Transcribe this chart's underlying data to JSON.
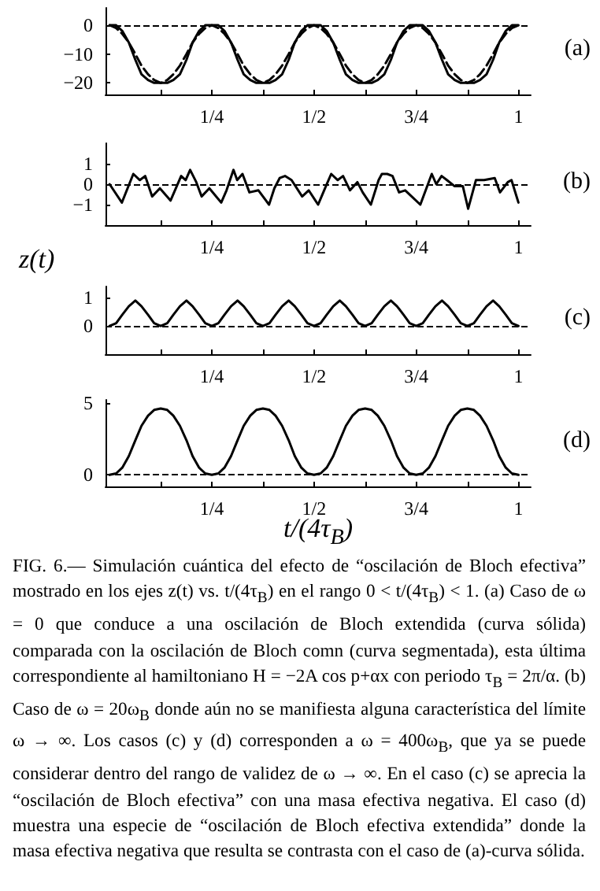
{
  "chart_data": [
    {
      "type": "line",
      "marker": "none",
      "annotations": [
        "(a)"
      ],
      "x": [
        0,
        0.016,
        0.031,
        0.047,
        0.063,
        0.078,
        0.094,
        0.109,
        0.125,
        0.141,
        0.156,
        0.172,
        0.188,
        0.203,
        0.219,
        0.234,
        0.25,
        0.266,
        0.281,
        0.297,
        0.313,
        0.328,
        0.344,
        0.359,
        0.375,
        0.391,
        0.406,
        0.422,
        0.438,
        0.453,
        0.469,
        0.484,
        0.5,
        0.516,
        0.531,
        0.547,
        0.563,
        0.578,
        0.594,
        0.609,
        0.625,
        0.641,
        0.656,
        0.672,
        0.688,
        0.703,
        0.719,
        0.734,
        0.75,
        0.766,
        0.781,
        0.797,
        0.813,
        0.828,
        0.844,
        0.859,
        0.875,
        0.891,
        0.906,
        0.922,
        0.938,
        0.953,
        0.969,
        0.984,
        1
      ],
      "series": [
        {
          "color": "#000000",
          "line_style": "solid",
          "values": [
            0,
            0,
            -2,
            -6,
            -12,
            -17,
            -19,
            -20,
            -20,
            -20,
            -19,
            -17,
            -12,
            -6,
            -2,
            0,
            0,
            0,
            -2,
            -6,
            -12,
            -17,
            -19,
            -20,
            -20,
            -20,
            -19,
            -17,
            -12,
            -6,
            -2,
            0,
            0,
            0,
            -2,
            -6,
            -12,
            -17,
            -19,
            -20,
            -20,
            -20,
            -19,
            -17,
            -12,
            -6,
            -2,
            0,
            0,
            0,
            -2,
            -6,
            -12,
            -17,
            -19,
            -20,
            -20,
            -20,
            -19,
            -17,
            -12,
            -6,
            -2,
            0,
            0
          ]
        },
        {
          "color": "#000000",
          "line_style": "dashed",
          "values": [
            0,
            -1,
            -3,
            -6,
            -10,
            -14,
            -17,
            -19,
            -20,
            -19,
            -17,
            -14,
            -10,
            -6,
            -3,
            -1,
            0,
            -1,
            -3,
            -6,
            -10,
            -14,
            -17,
            -19,
            -20,
            -19,
            -17,
            -14,
            -10,
            -6,
            -3,
            -1,
            0,
            -1,
            -3,
            -6,
            -10,
            -14,
            -17,
            -19,
            -20,
            -19,
            -17,
            -14,
            -10,
            -6,
            -3,
            -1,
            0,
            -1,
            -3,
            -6,
            -10,
            -14,
            -17,
            -19,
            -20,
            -19,
            -17,
            -14,
            -10,
            -6,
            -3,
            -1,
            0
          ]
        }
      ],
      "xlim": [
        -0.01,
        1.03
      ],
      "xticks": [
        {
          "value": 0.125,
          "label": null
        },
        {
          "value": 0.25,
          "label": "1/4"
        },
        {
          "value": 0.375,
          "label": null
        },
        {
          "value": 0.5,
          "label": "1/2"
        },
        {
          "value": 0.625,
          "label": null
        },
        {
          "value": 0.75,
          "label": "3/4"
        },
        {
          "value": 0.875,
          "label": null
        },
        {
          "value": 1,
          "label": "1"
        }
      ],
      "ylim": [
        -24,
        6
      ],
      "yticks": [
        -20,
        -10,
        0
      ],
      "ref_lines": [
        {
          "axis": "y",
          "value": 0,
          "line_style": "dashed"
        }
      ]
    },
    {
      "type": "line",
      "marker": "none",
      "annotations": [
        "(b)"
      ],
      "ylabel": "z(t)",
      "x": [
        0,
        0.03,
        0.058,
        0.074,
        0.087,
        0.104,
        0.123,
        0.149,
        0.175,
        0.186,
        0.197,
        0.212,
        0.225,
        0.244,
        0.273,
        0.286,
        0.303,
        0.312,
        0.325,
        0.342,
        0.364,
        0.39,
        0.403,
        0.416,
        0.429,
        0.445,
        0.471,
        0.487,
        0.51,
        0.529,
        0.542,
        0.558,
        0.571,
        0.588,
        0.606,
        0.619,
        0.639,
        0.658,
        0.666,
        0.679,
        0.692,
        0.708,
        0.723,
        0.76,
        0.788,
        0.799,
        0.812,
        0.825,
        0.844,
        0.864,
        0.877,
        0.896,
        0.916,
        0.942,
        0.955,
        0.974,
        0.983,
        1.0
      ],
      "series": [
        {
          "color": "#000000",
          "values": [
            0,
            -0.9,
            0.5,
            0.2,
            0.4,
            -0.6,
            -0.2,
            -0.8,
            0.4,
            0.2,
            0.7,
            0.1,
            -0.6,
            -0.2,
            -0.9,
            -0.3,
            0.7,
            0.2,
            0.5,
            -0.4,
            -0.3,
            -1.0,
            -0.2,
            0.3,
            0.4,
            0.2,
            -0.6,
            -0.3,
            -1.0,
            -0.1,
            0.5,
            0.2,
            0.4,
            -0.3,
            0.1,
            -0.4,
            -1.0,
            0.2,
            0.5,
            0.5,
            0.4,
            -0.4,
            -0.3,
            -1.0,
            0.5,
            0,
            0.4,
            0.2,
            -0.1,
            -0.1,
            -1.2,
            0.2,
            0.2,
            0.3,
            -0.4,
            0.1,
            0.2,
            -0.9
          ]
        }
      ],
      "xlim": [
        -0.01,
        1.03
      ],
      "xticks": [
        {
          "value": 0.125,
          "label": null
        },
        {
          "value": 0.25,
          "label": "1/4"
        },
        {
          "value": 0.375,
          "label": null
        },
        {
          "value": 0.5,
          "label": "1/2"
        },
        {
          "value": 0.625,
          "label": null
        },
        {
          "value": 0.75,
          "label": "3/4"
        },
        {
          "value": 0.875,
          "label": null
        },
        {
          "value": 1,
          "label": "1"
        }
      ],
      "ylim": [
        -2,
        2
      ],
      "yticks": [
        -1,
        0,
        1
      ],
      "ref_lines": [
        {
          "axis": "y",
          "value": 0,
          "line_style": "dashed"
        }
      ]
    },
    {
      "type": "line",
      "marker": "none",
      "annotations": [
        "(c)"
      ],
      "x": [
        0,
        0.016,
        0.031,
        0.047,
        0.063,
        0.078,
        0.094,
        0.109,
        0.125,
        0.141,
        0.156,
        0.172,
        0.188,
        0.203,
        0.219,
        0.234,
        0.25,
        0.266,
        0.281,
        0.297,
        0.313,
        0.328,
        0.344,
        0.359,
        0.375,
        0.391,
        0.406,
        0.422,
        0.438,
        0.453,
        0.469,
        0.484,
        0.5,
        0.516,
        0.531,
        0.547,
        0.563,
        0.578,
        0.594,
        0.609,
        0.625,
        0.641,
        0.656,
        0.672,
        0.688,
        0.703,
        0.719,
        0.734,
        0.75,
        0.766,
        0.781,
        0.797,
        0.813,
        0.828,
        0.844,
        0.859,
        0.875,
        0.891,
        0.906,
        0.922,
        0.938,
        0.953,
        0.969,
        0.984,
        1
      ],
      "series": [
        {
          "color": "#000000",
          "values": [
            0,
            0.1,
            0.4,
            0.7,
            0.9,
            0.7,
            0.4,
            0.1,
            0,
            0.1,
            0.4,
            0.7,
            0.9,
            0.7,
            0.4,
            0.1,
            0,
            0.1,
            0.4,
            0.7,
            0.9,
            0.7,
            0.4,
            0.1,
            0,
            0.1,
            0.4,
            0.7,
            0.9,
            0.7,
            0.4,
            0.1,
            0,
            0.1,
            0.4,
            0.7,
            0.9,
            0.7,
            0.4,
            0.1,
            0,
            0.1,
            0.4,
            0.7,
            0.9,
            0.7,
            0.4,
            0.1,
            0,
            0.1,
            0.4,
            0.7,
            0.9,
            0.7,
            0.4,
            0.1,
            0,
            0.1,
            0.4,
            0.7,
            0.9,
            0.7,
            0.4,
            0.1,
            0
          ]
        }
      ],
      "xlim": [
        -0.01,
        1.03
      ],
      "xticks": [
        {
          "value": 0.125,
          "label": null
        },
        {
          "value": 0.25,
          "label": "1/4"
        },
        {
          "value": 0.375,
          "label": null
        },
        {
          "value": 0.5,
          "label": "1/2"
        },
        {
          "value": 0.625,
          "label": null
        },
        {
          "value": 0.75,
          "label": "3/4"
        },
        {
          "value": 0.875,
          "label": null
        },
        {
          "value": 1,
          "label": "1"
        }
      ],
      "ylim": [
        -1,
        1.4
      ],
      "yticks": [
        0,
        1
      ],
      "ref_lines": [
        {
          "axis": "y",
          "value": 0,
          "line_style": "dashed"
        }
      ]
    },
    {
      "type": "line",
      "marker": "none",
      "xlabel": "t/(4τ$_{B}$)",
      "annotations": [
        "(d)",
        "FIG. 6.— Simulación cuántica del efecto de “oscilación de Bloch efectiva” mostrado en los ejes z(t) vs. t/(4τ$_{B}$) en el rango 0 < t/(4τ$_{B}$) < 1. (a) Caso de ω = 0 que conduce a una oscilación de Bloch extendida (curva sólida) comparada con la oscilación de Bloch comn (curva segmentada), esta última correspondiente al hamiltoniano H = −2A cos p+αx con periodo τ$_{B}$ = 2π/α. (b) Caso de ω = 20ω$_{B}$ donde aún no se manifiesta alguna característica del límite ω → ∞. Los casos (c) y (d) corresponden a ω = 400ω$_{B}$, que ya se puede considerar dentro del rango de validez de ω → ∞. En el caso (c) se aprecia la “oscilación de Bloch efectiva” con una masa efectiva negativa. El caso (d) muestra una especie de “oscilación de Bloch efectiva extendida” donde la masa efectiva negativa que resulta se contrasta con el caso de (a)-curva sólida."
      ],
      "x": [
        0,
        0.016,
        0.031,
        0.047,
        0.063,
        0.078,
        0.094,
        0.109,
        0.125,
        0.141,
        0.156,
        0.172,
        0.188,
        0.203,
        0.219,
        0.234,
        0.25,
        0.266,
        0.281,
        0.297,
        0.313,
        0.328,
        0.344,
        0.359,
        0.375,
        0.391,
        0.406,
        0.422,
        0.438,
        0.453,
        0.469,
        0.484,
        0.5,
        0.516,
        0.531,
        0.547,
        0.563,
        0.578,
        0.594,
        0.609,
        0.625,
        0.641,
        0.656,
        0.672,
        0.688,
        0.703,
        0.719,
        0.734,
        0.75,
        0.766,
        0.781,
        0.797,
        0.813,
        0.828,
        0.844,
        0.859,
        0.875,
        0.891,
        0.906,
        0.922,
        0.938,
        0.953,
        0.969,
        0.984,
        1
      ],
      "series": [
        {
          "color": "#000000",
          "values": [
            0,
            0.1,
            0.5,
            1.3,
            2.4,
            3.4,
            4.1,
            4.5,
            4.6,
            4.5,
            4.1,
            3.4,
            2.4,
            1.3,
            0.5,
            0.1,
            0,
            0.1,
            0.5,
            1.3,
            2.4,
            3.4,
            4.1,
            4.5,
            4.6,
            4.5,
            4.1,
            3.4,
            2.4,
            1.3,
            0.5,
            0.1,
            0,
            0.1,
            0.5,
            1.3,
            2.4,
            3.4,
            4.1,
            4.5,
            4.6,
            4.5,
            4.1,
            3.4,
            2.4,
            1.3,
            0.5,
            0.1,
            0,
            0.1,
            0.5,
            1.3,
            2.4,
            3.4,
            4.1,
            4.5,
            4.6,
            4.5,
            4.1,
            3.4,
            2.4,
            1.3,
            0.5,
            0.1,
            0
          ]
        }
      ],
      "xlim": [
        -0.01,
        1.03
      ],
      "xticks": [
        {
          "value": 0.125,
          "label": null
        },
        {
          "value": 0.25,
          "label": "1/4"
        },
        {
          "value": 0.375,
          "label": null
        },
        {
          "value": 0.5,
          "label": "1/2"
        },
        {
          "value": 0.625,
          "label": null
        },
        {
          "value": 0.75,
          "label": "3/4"
        },
        {
          "value": 0.875,
          "label": null
        },
        {
          "value": 1,
          "label": "1"
        }
      ],
      "ylim": [
        -0.8,
        5.2
      ],
      "yticks": [
        0,
        5
      ],
      "ref_lines": [
        {
          "axis": "y",
          "value": 0,
          "line_style": "dashed"
        }
      ]
    }
  ]
}
